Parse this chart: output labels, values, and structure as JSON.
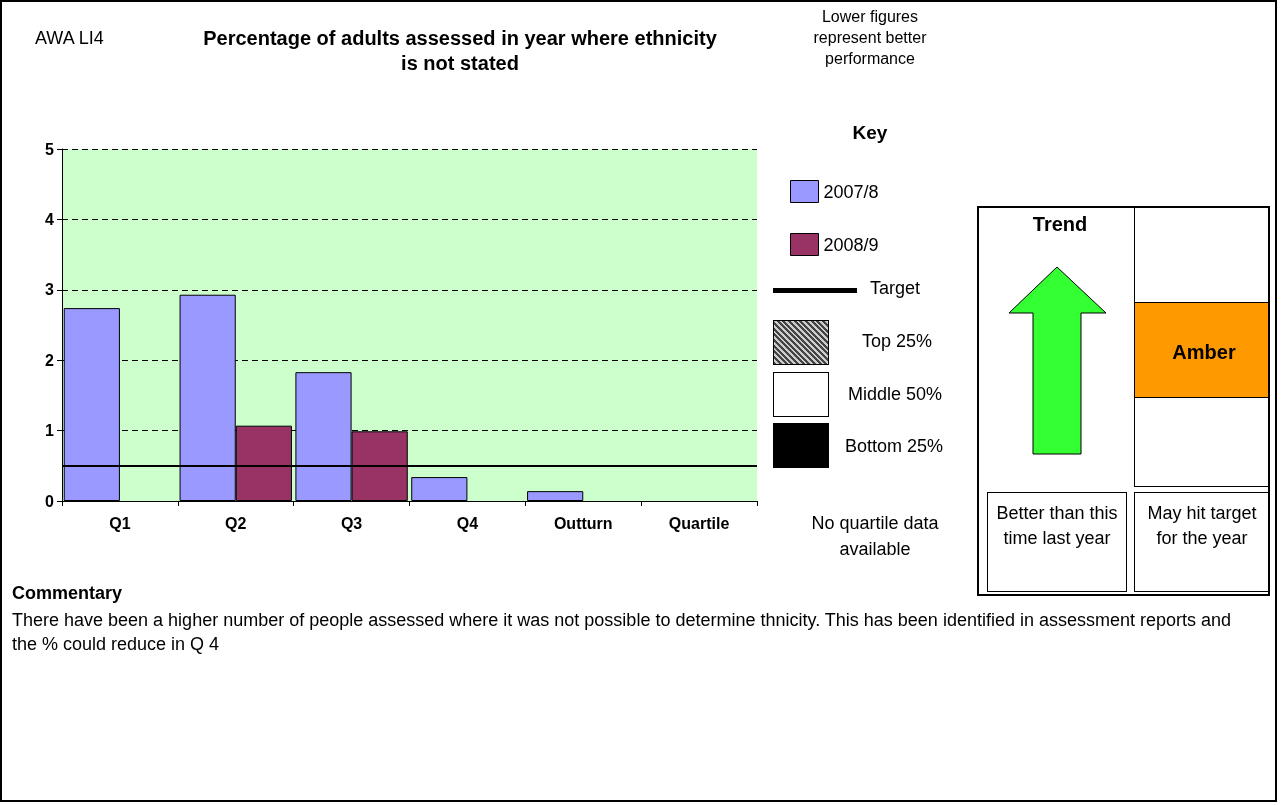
{
  "chart_data": {
    "type": "bar",
    "title": "Percentage of adults assessed in year where ethnicity is not stated",
    "legend_title": "Key",
    "categories": [
      "Q1",
      "Q2",
      "Q3",
      "Q4",
      "Outturn",
      "Quartile"
    ],
    "series": [
      {
        "name": "2007/8",
        "color": "#9999ff",
        "values": [
          2.74,
          2.93,
          1.83,
          0.34,
          0.14,
          null
        ]
      },
      {
        "name": "2008/9",
        "color": "#993366",
        "values": [
          null,
          1.07,
          0.99,
          null,
          null,
          null
        ]
      }
    ],
    "ylim": [
      0,
      5
    ],
    "yticks": [
      0,
      1,
      2,
      3,
      4,
      5
    ],
    "grid": "y",
    "legend": "right",
    "ref_lines": [
      {
        "axis": "y",
        "value": 0.5,
        "label": "Target",
        "color": "#000000"
      }
    ],
    "annotations": [
      "AWA LI4",
      "Lower figures represent better performance",
      "Top 25%",
      "Middle 50%",
      "Bottom 25%",
      "No quartile data available",
      "Trend",
      "Amber",
      "Better than this time last year",
      "May hit target for the year",
      "Commentary",
      "There have been a higher number of people assessed where it was not possible to determine thnicity. This has been identified in assessment reports and the % could reduce in Q 4"
    ]
  }
}
